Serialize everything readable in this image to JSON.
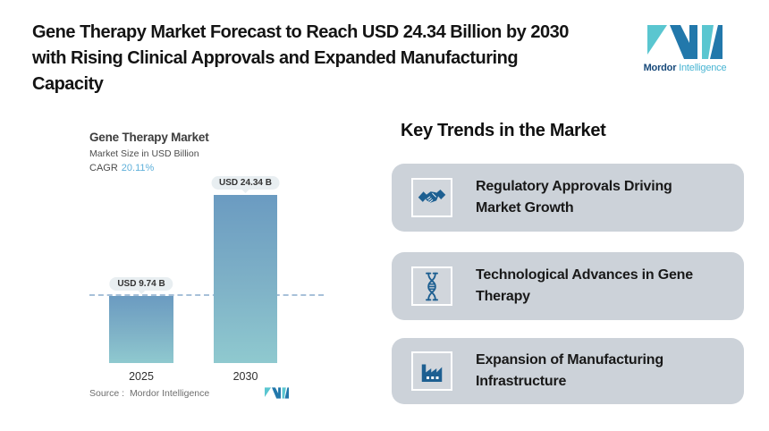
{
  "header": {
    "title_lines": [
      "Gene Therapy Market Forecast to Reach USD 24.34 Billion by 2030",
      "with Rising Clinical Approvals and Expanded Manufacturing",
      "Capacity"
    ],
    "logo": {
      "brand": "Mordor",
      "brand_suffix": "Intelligence"
    }
  },
  "chart": {
    "title": "Gene Therapy Market",
    "subtitle": "Market Size in USD Billion",
    "cagr_label": "CAGR",
    "cagr_value": "20.11%",
    "bar_labels": [
      "USD 9.74 B",
      "USD 24.34 B"
    ],
    "source": "Source :  Mordor Intelligence"
  },
  "chart_data": {
    "type": "bar",
    "title": "Gene Therapy Market",
    "subtitle": "Market Size in USD Billion",
    "unit": "USD Billion",
    "categories": [
      "2025",
      "2030"
    ],
    "values": [
      9.74,
      24.34
    ],
    "data_labels": [
      "USD 9.74 B",
      "USD 24.34 B"
    ],
    "cagr_percent": 20.11,
    "reference_line": 9.74,
    "ylim": [
      0,
      24.34
    ],
    "grid": false,
    "legend": false
  },
  "trends": {
    "heading": "Key Trends in the Market",
    "items": [
      {
        "icon": "handshake-icon",
        "line1": "Regulatory Approvals Driving",
        "line2": "Market Growth"
      },
      {
        "icon": "dna-icon",
        "line1": "Technological Advances in Gene",
        "line2": "Therapy"
      },
      {
        "icon": "factory-icon",
        "line1": "Expansion of Manufacturing",
        "line2": "Infrastructure"
      }
    ]
  },
  "colors": {
    "bar_top": "#6b9bc1",
    "bar_bottom": "#8fc9cf",
    "dashed_line": "#a7c0d9",
    "badge_bg": "#e8eef1",
    "card_bg": "#ccd2d9",
    "icon_blue": "#1d5f91",
    "logo_teal": "#5ac6d0",
    "logo_blue": "#2278ab",
    "cagr_value_color": "#5fb0da"
  }
}
